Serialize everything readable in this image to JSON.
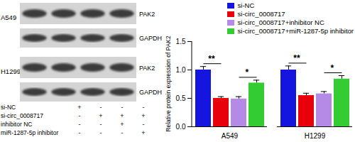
{
  "chart_data": {
    "type": "bar",
    "categories": [
      "A549",
      "H1299"
    ],
    "y_label": "Relative protein expression of PAK2",
    "ylim": [
      0,
      1.5
    ],
    "yticks": [
      {
        "value": 0,
        "label": "0.0"
      },
      {
        "value": 0.5,
        "label": "0.5"
      },
      {
        "value": 1,
        "label": "1.0"
      },
      {
        "value": 1.5,
        "label": "1.5"
      }
    ],
    "series": [
      {
        "name": "si-NC",
        "color": "#1515e0",
        "values": [
          1.0,
          1.0
        ],
        "errors": [
          0.06,
          0.07
        ]
      },
      {
        "name": "si-circ_0008717",
        "color": "#e8000b",
        "values": [
          0.5,
          0.55
        ],
        "errors": [
          0.03,
          0.04
        ]
      },
      {
        "name": "si-circ_0008717+inhibitor NC",
        "color": "#b48ae6",
        "values": [
          0.49,
          0.58
        ],
        "errors": [
          0.04,
          0.04
        ]
      },
      {
        "name": "si-circ_0008717+miR-1287-5p inhibitor",
        "color": "#33cc33",
        "values": [
          0.77,
          0.84
        ],
        "errors": [
          0.05,
          0.06
        ]
      }
    ],
    "annotations": [
      {
        "text": "**",
        "group": "A549",
        "from": "si-NC",
        "to": "si-circ_0008717"
      },
      {
        "text": "*",
        "group": "A549",
        "from": "si-circ_0008717+inhibitor NC",
        "to": "si-circ_0008717+miR-1287-5p inhibitor"
      },
      {
        "text": "**",
        "group": "H1299",
        "from": "si-NC",
        "to": "si-circ_0008717"
      },
      {
        "text": "*",
        "group": "H1299",
        "from": "si-circ_0008717+inhibitor NC",
        "to": "si-circ_0008717+miR-1287-5p inhibitor"
      }
    ],
    "legend": "top right"
  },
  "western_blot": {
    "panels": [
      {
        "cell_line": "A549",
        "bands": [
          "PAK2",
          "GAPDH"
        ]
      },
      {
        "cell_line": "H1299",
        "bands": [
          "PAK2",
          "GAPDH"
        ]
      }
    ],
    "conditions": [
      {
        "label": "si-NC",
        "signs": [
          "+",
          "-",
          "-",
          "-"
        ]
      },
      {
        "label": "si-circ_0008717",
        "signs": [
          "-",
          "+",
          "+",
          "+"
        ]
      },
      {
        "label": "inhibitor NC",
        "signs": [
          "-",
          "-",
          "+",
          "-"
        ]
      },
      {
        "label": "miR-1287-5p inhibitor",
        "signs": [
          "-",
          "-",
          "-",
          "+"
        ]
      }
    ]
  }
}
